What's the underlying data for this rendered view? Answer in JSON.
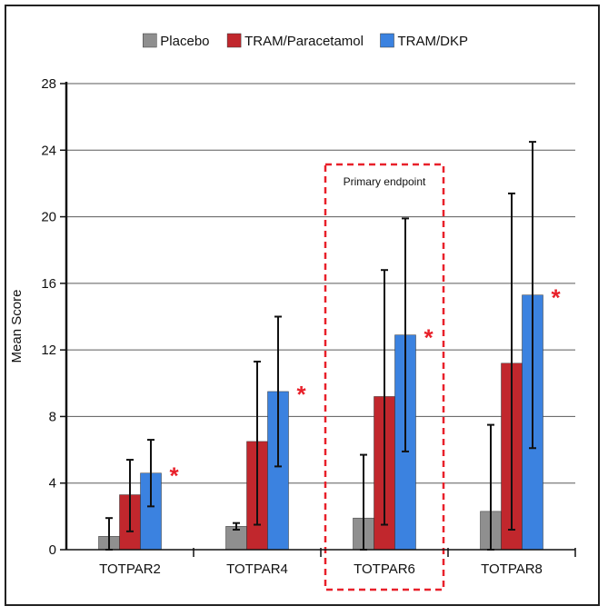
{
  "chart_data": {
    "type": "bar",
    "title": "",
    "xlabel": "",
    "ylabel": "Mean Score",
    "ylim": [
      0,
      28
    ],
    "yticks": [
      0,
      4,
      8,
      12,
      16,
      20,
      24,
      28
    ],
    "grid": true,
    "legend_position": "top",
    "categories": [
      "TOTPAR2",
      "TOTPAR4",
      "TOTPAR6",
      "TOTPAR8"
    ],
    "series": [
      {
        "name": "Placebo",
        "color": "#8f8f8f",
        "values": [
          0.8,
          1.4,
          1.9,
          2.3
        ],
        "error_upper": [
          1.9,
          1.6,
          5.7,
          7.5
        ],
        "error_lower": [
          0.0,
          1.2,
          0.0,
          0.0
        ]
      },
      {
        "name": "TRAM/Paracetamol",
        "color": "#c1272d",
        "values": [
          3.3,
          6.5,
          9.2,
          11.2
        ],
        "error_upper": [
          5.4,
          11.3,
          16.8,
          21.4
        ],
        "error_lower": [
          1.1,
          1.5,
          1.5,
          1.2
        ]
      },
      {
        "name": "TRAM/DKP",
        "color": "#3b82e0",
        "values": [
          4.6,
          9.5,
          12.9,
          15.3
        ],
        "error_upper": [
          6.6,
          14.0,
          19.9,
          24.5
        ],
        "error_lower": [
          2.6,
          5.0,
          5.9,
          6.1
        ]
      }
    ],
    "annotations": {
      "significance_marker": "*",
      "significance_color": "#e8202a",
      "highlight_box_label": "Primary endpoint",
      "highlight_box_category": "TOTPAR6",
      "highlight_box_color": "#e8202a"
    }
  }
}
